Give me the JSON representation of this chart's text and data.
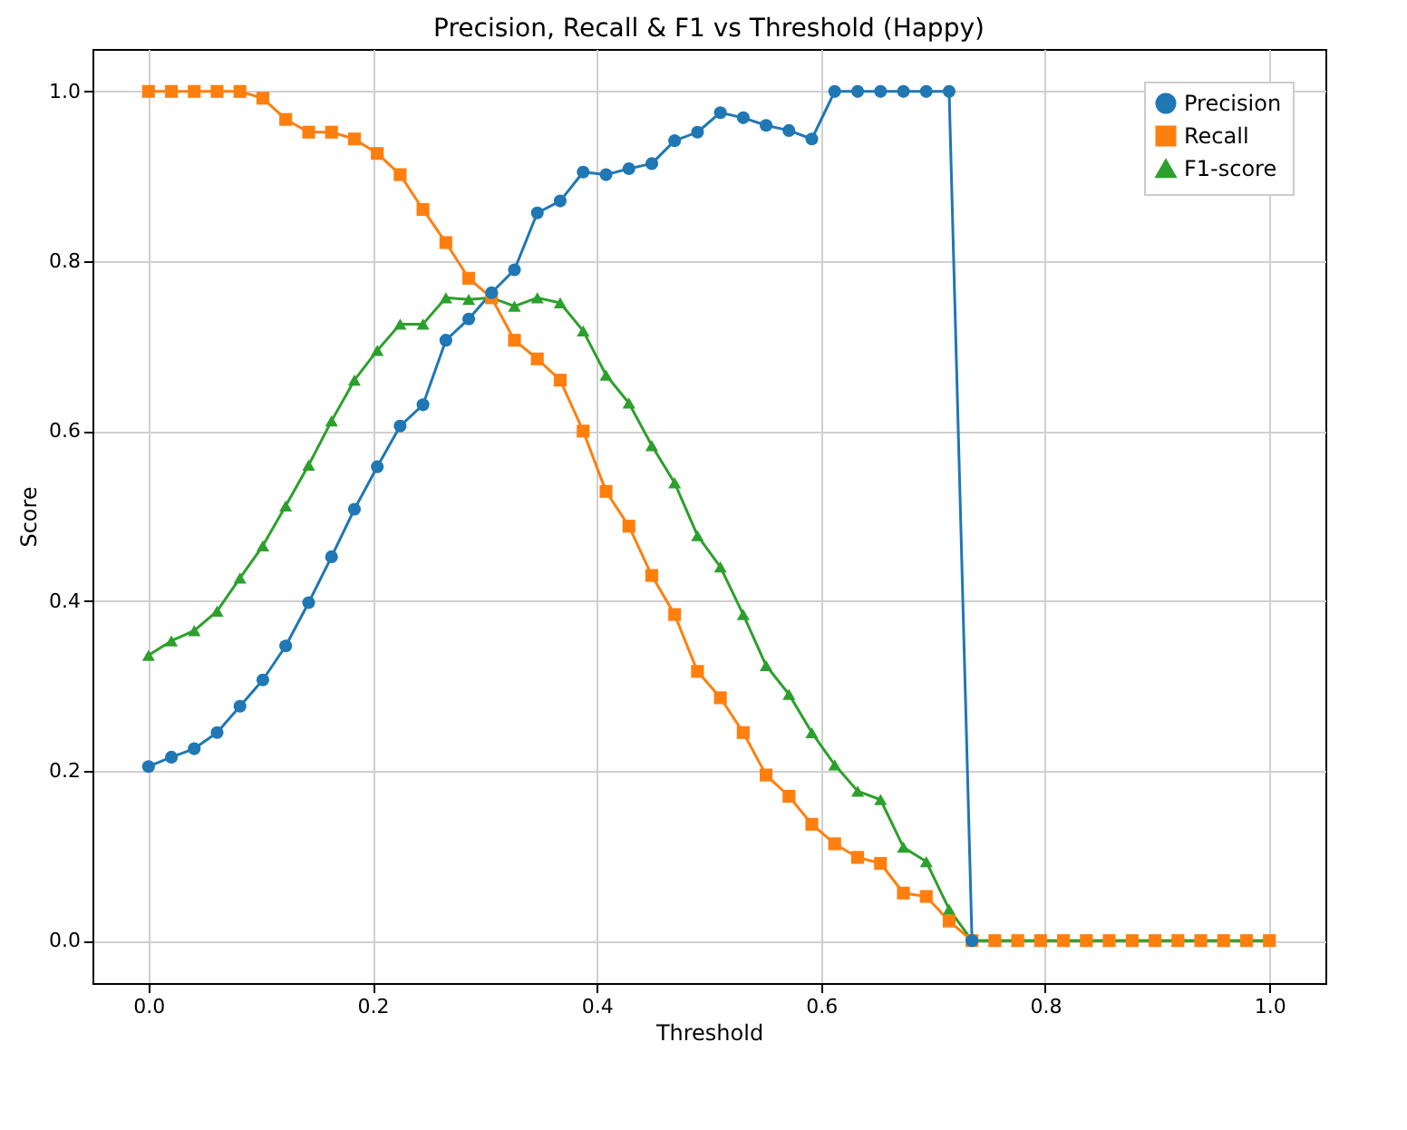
{
  "chart_data": {
    "type": "line",
    "title": "Precision, Recall & F1 vs Threshold (Happy)",
    "xlabel": "Threshold",
    "ylabel": "Score",
    "x": [
      0,
      0.0204,
      0.0408,
      0.0612,
      0.0816,
      0.102,
      0.1224,
      0.1429,
      0.1633,
      0.1837,
      0.2041,
      0.2245,
      0.2449,
      0.2653,
      0.2857,
      0.3061,
      0.3265,
      0.3469,
      0.3673,
      0.3878,
      0.4082,
      0.4286,
      0.449,
      0.4694,
      0.4898,
      0.5102,
      0.5306,
      0.551,
      0.5714,
      0.5918,
      0.6122,
      0.6327,
      0.6531,
      0.6735,
      0.6939,
      0.7143,
      0.7347,
      0.7551,
      0.7755,
      0.7959,
      0.8163,
      0.8367,
      0.8571,
      0.8776,
      0.898,
      0.9184,
      0.9388,
      0.9592,
      0.9796,
      1
    ],
    "series": [
      {
        "name": "Precision",
        "color": "#1f77b4",
        "marker": "circle",
        "values": [
          0.205,
          0.216,
          0.226,
          0.245,
          0.276,
          0.307,
          0.347,
          0.398,
          0.452,
          0.508,
          0.558,
          0.606,
          0.631,
          0.707,
          0.732,
          0.763,
          0.79,
          0.857,
          0.871,
          0.905,
          0.902,
          0.909,
          0.915,
          0.942,
          0.952,
          0.975,
          0.969,
          0.96,
          0.954,
          0.944,
          1,
          1,
          1,
          1,
          1,
          1,
          0,
          null,
          null,
          null,
          null,
          null,
          null,
          null,
          null,
          null,
          null,
          null,
          null,
          null
        ]
      },
      {
        "name": "Recall",
        "color": "#ff7f0e",
        "marker": "square",
        "values": [
          1,
          1,
          1,
          1,
          1,
          0.992,
          0.967,
          0.952,
          0.952,
          0.944,
          0.927,
          0.902,
          0.861,
          0.822,
          0.78,
          0.757,
          0.707,
          0.685,
          0.66,
          0.6,
          0.529,
          0.488,
          0.43,
          0.384,
          0.317,
          0.286,
          0.245,
          0.195,
          0.17,
          0.137,
          0.114,
          0.098,
          0.091,
          0.056,
          0.052,
          0.023,
          0,
          0,
          0,
          0,
          0,
          0,
          0,
          0,
          0,
          0,
          0,
          0,
          0,
          0
        ]
      },
      {
        "name": "F1-score",
        "color": "#2ca02c",
        "marker": "triangle",
        "values": [
          0.336,
          0.353,
          0.365,
          0.388,
          0.427,
          0.465,
          0.512,
          0.56,
          0.612,
          0.66,
          0.695,
          0.726,
          0.726,
          0.757,
          0.755,
          0.757,
          0.747,
          0.757,
          0.751,
          0.718,
          0.666,
          0.633,
          0.583,
          0.539,
          0.477,
          0.44,
          0.384,
          0.324,
          0.29,
          0.245,
          0.207,
          0.176,
          0.166,
          0.11,
          0.093,
          0.037,
          0,
          0,
          0,
          0,
          0,
          0,
          0,
          0,
          0,
          0,
          0,
          0,
          0,
          0
        ]
      }
    ],
    "xlim": [
      -0.05,
      1.05
    ],
    "ylim": [
      -0.05,
      1.05
    ],
    "xticks": [
      {
        "value": 0,
        "label": "0.0"
      },
      {
        "value": 0.2,
        "label": "0.2"
      },
      {
        "value": 0.4,
        "label": "0.4"
      },
      {
        "value": 0.6,
        "label": "0.6"
      },
      {
        "value": 0.8,
        "label": "0.8"
      },
      {
        "value": 1,
        "label": "1.0"
      }
    ],
    "yticks": [
      {
        "value": 0,
        "label": "0.0"
      },
      {
        "value": 0.2,
        "label": "0.2"
      },
      {
        "value": 0.4,
        "label": "0.4"
      },
      {
        "value": 0.6,
        "label": "0.6"
      },
      {
        "value": 0.8,
        "label": "0.8"
      },
      {
        "value": 1,
        "label": "1.0"
      }
    ],
    "grid": true,
    "legend": "top right",
    "line_style": "solid"
  }
}
